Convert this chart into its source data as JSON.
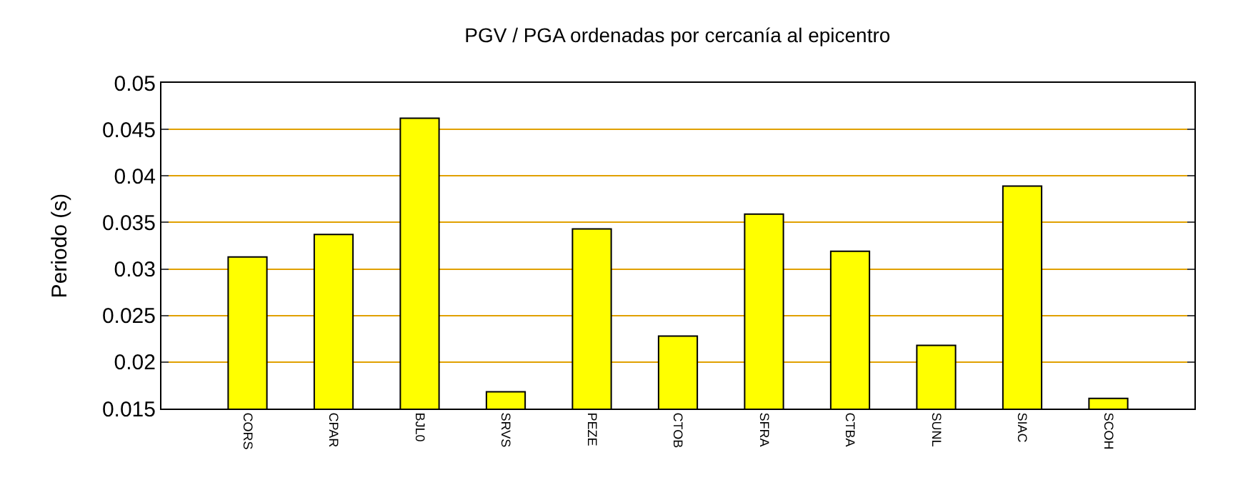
{
  "chart_data": {
    "type": "bar",
    "title": "PGV / PGA ordenadas por cercanía al epicentro",
    "ylabel": "Periodo (s)",
    "categories": [
      "CORS",
      "CPAR",
      "BJL0",
      "SRVS",
      "PEZE",
      "CTOB",
      "SFRA",
      "CTBA",
      "SUNL",
      "SIAC",
      "SCOH"
    ],
    "values": [
      0.0313,
      0.0337,
      0.0462,
      0.0168,
      0.0343,
      0.0228,
      0.0359,
      0.0319,
      0.0218,
      0.0389,
      0.0161
    ],
    "color": "#ffff00",
    "ylim": [
      0.015,
      0.05
    ],
    "yticks": [
      0.015,
      0.02,
      0.025,
      0.03,
      0.035,
      0.04,
      0.045,
      0.05
    ],
    "grid": true,
    "legend": false
  }
}
